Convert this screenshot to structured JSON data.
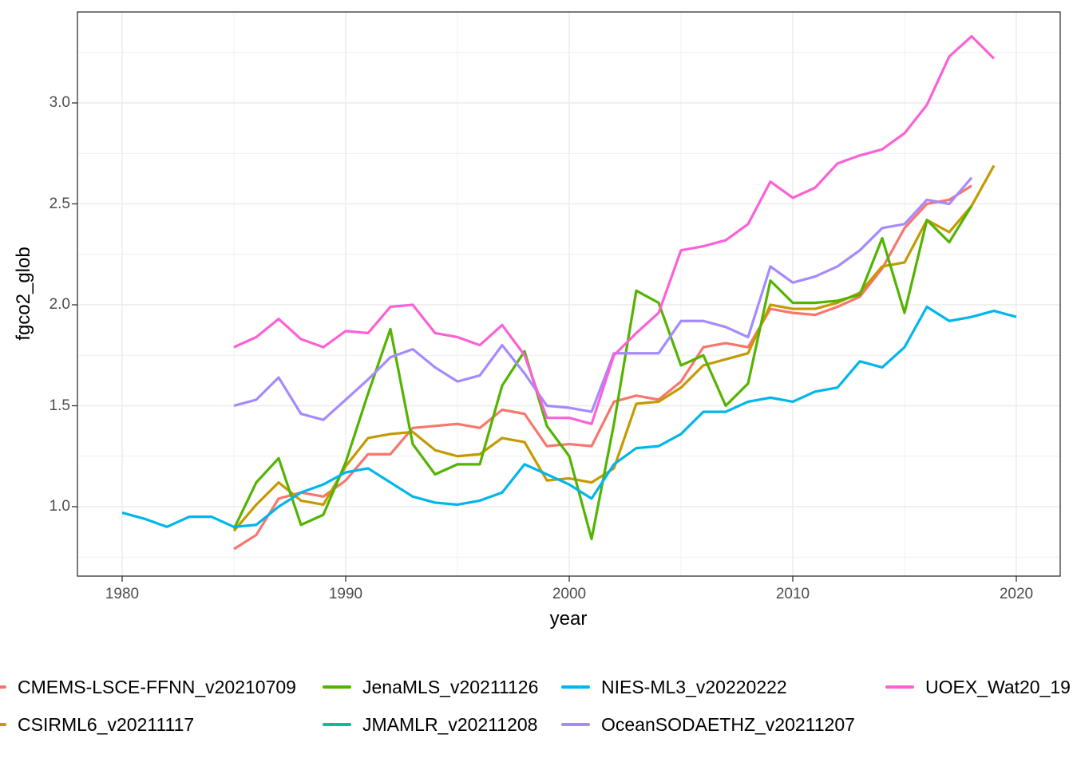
{
  "chart": {
    "xlabel": "year",
    "ylabel": "fgco2_glob",
    "x_tick_labels": [
      "1980",
      "1990",
      "2000",
      "2010",
      "2020"
    ],
    "y_tick_labels": [
      "1.0",
      "1.5",
      "2.0",
      "2.5",
      "3.0"
    ]
  },
  "chart_data": {
    "type": "line",
    "title": "",
    "xlabel": "year",
    "ylabel": "fgco2_glob",
    "xlim": [
      1978,
      2022
    ],
    "ylim": [
      0.66,
      3.45
    ],
    "grid": true,
    "legend_position": "bottom",
    "x_ticks": [
      1980,
      1990,
      2000,
      2010,
      2020
    ],
    "y_ticks": [
      1.0,
      1.5,
      2.0,
      2.5,
      3.0
    ],
    "minor_x": [
      1985,
      1995,
      2005,
      2015
    ],
    "minor_y": [
      0.75,
      1.25,
      1.75,
      2.25,
      2.75,
      3.25
    ],
    "colors": {
      "grid": "#ebebeb",
      "panel_border": "#333333",
      "tick_mark": "#333333",
      "tick_text": "#4d4d4d",
      "axis_title": "#000000"
    },
    "series": [
      {
        "name": "CMEMS-LSCE-FFNN_v20210709",
        "color": "#F8766D",
        "years": [
          1985,
          1986,
          1987,
          1988,
          1989,
          1990,
          1991,
          1992,
          1993,
          1994,
          1995,
          1996,
          1997,
          1998,
          1999,
          2000,
          2001,
          2002,
          2003,
          2004,
          2005,
          2006,
          2007,
          2008,
          2009,
          2010,
          2011,
          2012,
          2013,
          2014,
          2015,
          2016,
          2017,
          2018
        ],
        "values": [
          0.79,
          0.86,
          1.04,
          1.07,
          1.05,
          1.13,
          1.26,
          1.26,
          1.39,
          1.4,
          1.41,
          1.39,
          1.48,
          1.46,
          1.3,
          1.31,
          1.3,
          1.52,
          1.55,
          1.53,
          1.62,
          1.79,
          1.81,
          1.79,
          1.98,
          1.96,
          1.95,
          1.99,
          2.04,
          2.18,
          2.38,
          2.5,
          2.52,
          2.59
        ]
      },
      {
        "name": "CSIRML6_v20211117",
        "color": "#C49A00",
        "years": [
          1985,
          1986,
          1987,
          1988,
          1989,
          1990,
          1991,
          1992,
          1993,
          1994,
          1995,
          1996,
          1997,
          1998,
          1999,
          2000,
          2001,
          2002,
          2003,
          2004,
          2005,
          2006,
          2007,
          2008,
          2009,
          2010,
          2011,
          2012,
          2013,
          2014,
          2015,
          2016,
          2017,
          2018,
          2019
        ],
        "values": [
          0.88,
          1.01,
          1.12,
          1.03,
          1.01,
          1.2,
          1.34,
          1.36,
          1.37,
          1.28,
          1.25,
          1.26,
          1.34,
          1.32,
          1.13,
          1.14,
          1.12,
          1.19,
          1.51,
          1.52,
          1.59,
          1.7,
          1.73,
          1.76,
          2.0,
          1.98,
          1.98,
          2.01,
          2.06,
          2.19,
          2.21,
          2.42,
          2.36,
          2.49,
          2.69
        ]
      },
      {
        "name": "JenaMLS_v20211126",
        "color": "#53B400",
        "years": [
          1985,
          1986,
          1987,
          1988,
          1989,
          1990,
          1991,
          1992,
          1993,
          1994,
          1995,
          1996,
          1997,
          1998,
          1999,
          2000,
          2001,
          2002,
          2003,
          2004,
          2005,
          2006,
          2007,
          2008,
          2009,
          2010,
          2011,
          2012,
          2013,
          2014,
          2015,
          2016,
          2017,
          2018
        ],
        "values": [
          0.89,
          1.12,
          1.24,
          0.91,
          0.96,
          1.22,
          1.56,
          1.88,
          1.31,
          1.16,
          1.21,
          1.21,
          1.6,
          1.77,
          1.4,
          1.25,
          0.84,
          1.41,
          2.07,
          2.01,
          1.7,
          1.75,
          1.5,
          1.61,
          2.12,
          2.01,
          2.01,
          2.02,
          2.05,
          2.33,
          1.96,
          2.42,
          2.31,
          2.49
        ]
      },
      {
        "name": "JMAMLR_v20211208",
        "color": "#00C094",
        "years": [],
        "values": [],
        "note": "legend entry present; line not visibly distinguishable in the plot area"
      },
      {
        "name": "NIES-ML3_v20220222",
        "color": "#00B6EB",
        "years": [
          1980,
          1981,
          1982,
          1983,
          1984,
          1985,
          1986,
          1987,
          1988,
          1989,
          1990,
          1991,
          1992,
          1993,
          1994,
          1995,
          1996,
          1997,
          1998,
          1999,
          2000,
          2001,
          2002,
          2003,
          2004,
          2005,
          2006,
          2007,
          2008,
          2009,
          2010,
          2011,
          2012,
          2013,
          2014,
          2015,
          2016,
          2017,
          2018,
          2019,
          2020
        ],
        "values": [
          0.97,
          0.94,
          0.9,
          0.95,
          0.95,
          0.9,
          0.91,
          1.0,
          1.07,
          1.11,
          1.17,
          1.19,
          1.12,
          1.05,
          1.02,
          1.01,
          1.03,
          1.07,
          1.21,
          1.16,
          1.11,
          1.04,
          1.21,
          1.29,
          1.3,
          1.36,
          1.47,
          1.47,
          1.52,
          1.54,
          1.52,
          1.57,
          1.59,
          1.72,
          1.69,
          1.79,
          1.99,
          1.92,
          1.94,
          1.97,
          1.94
        ]
      },
      {
        "name": "OceanSODAETHZ_v20211207",
        "color": "#A58AFF",
        "years": [
          1985,
          1986,
          1987,
          1988,
          1989,
          1990,
          1991,
          1992,
          1993,
          1994,
          1995,
          1996,
          1997,
          1998,
          1999,
          2000,
          2001,
          2002,
          2003,
          2004,
          2005,
          2006,
          2007,
          2008,
          2009,
          2010,
          2011,
          2012,
          2013,
          2014,
          2015,
          2016,
          2017,
          2018
        ],
        "values": [
          1.5,
          1.53,
          1.64,
          1.46,
          1.43,
          1.53,
          1.63,
          1.74,
          1.78,
          1.69,
          1.62,
          1.65,
          1.8,
          1.66,
          1.5,
          1.49,
          1.47,
          1.76,
          1.76,
          1.76,
          1.92,
          1.92,
          1.89,
          1.84,
          2.19,
          2.11,
          2.14,
          2.19,
          2.27,
          2.38,
          2.4,
          2.52,
          2.5,
          2.63
        ]
      },
      {
        "name": "UOEX_Wat20_19",
        "label_truncated": true,
        "color": "#FB61D7",
        "years": [
          1985,
          1986,
          1987,
          1988,
          1989,
          1990,
          1991,
          1992,
          1993,
          1994,
          1995,
          1996,
          1997,
          1998,
          1999,
          2000,
          2001,
          2002,
          2003,
          2004,
          2005,
          2006,
          2007,
          2008,
          2009,
          2010,
          2011,
          2012,
          2013,
          2014,
          2015,
          2016,
          2017,
          2018,
          2019
        ],
        "values": [
          1.79,
          1.84,
          1.93,
          1.83,
          1.79,
          1.87,
          1.86,
          1.99,
          2.0,
          1.86,
          1.84,
          1.8,
          1.9,
          1.75,
          1.44,
          1.44,
          1.41,
          1.75,
          1.86,
          1.96,
          2.27,
          2.29,
          2.32,
          2.4,
          2.61,
          2.53,
          2.58,
          2.7,
          2.74,
          2.77,
          2.85,
          2.99,
          3.23,
          3.33,
          3.22
        ]
      }
    ]
  },
  "legend": {
    "items": [
      {
        "label": "CMEMS-LSCE-FFNN_v20210709",
        "color": "#F8766D",
        "row": 0,
        "col": 0
      },
      {
        "label": "JenaMLS_v20211126",
        "color": "#53B400",
        "row": 0,
        "col": 1
      },
      {
        "label": "NIES-ML3_v20220222",
        "color": "#00B6EB",
        "row": 0,
        "col": 2
      },
      {
        "label": "UOEX_Wat20_19",
        "color": "#FB61D7",
        "row": 0,
        "col": 3,
        "truncated": true
      },
      {
        "label": "CSIRML6_v20211117",
        "color": "#C49A00",
        "row": 1,
        "col": 0
      },
      {
        "label": "JMAMLR_v20211208",
        "color": "#00C094",
        "row": 1,
        "col": 1
      },
      {
        "label": "OceanSODAETHZ_v20211207",
        "color": "#A58AFF",
        "row": 1,
        "col": 2
      }
    ]
  }
}
